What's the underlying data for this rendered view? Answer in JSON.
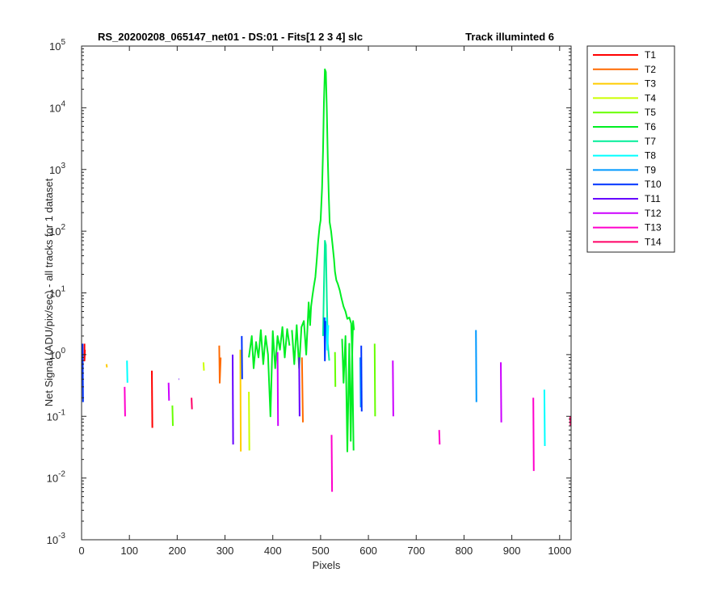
{
  "chart_data": {
    "type": "line",
    "title": "RS_20200208_065147_net01 - DS:01 - Fits[1  2  3  4]   slc",
    "subtitle": "Track illuminted 6",
    "xlabel": "Pixels",
    "ylabel": "Net Signal (ADU/pix/sec) - all tracks for 1 dataset",
    "xlim": [
      0,
      1024
    ],
    "ylim": [
      0.001,
      100000
    ],
    "yscale": "log",
    "x_ticks": [
      "0",
      "100",
      "200",
      "300",
      "400",
      "500",
      "600",
      "700",
      "800",
      "900",
      "1000"
    ],
    "y_ticks": [
      {
        "base": "10",
        "exp": "-3"
      },
      {
        "base": "10",
        "exp": "-2"
      },
      {
        "base": "10",
        "exp": "-1"
      },
      {
        "base": "10",
        "exp": "0"
      },
      {
        "base": "10",
        "exp": "1"
      },
      {
        "base": "10",
        "exp": "2"
      },
      {
        "base": "10",
        "exp": "3"
      },
      {
        "base": "10",
        "exp": "4"
      },
      {
        "base": "10",
        "exp": "5"
      }
    ],
    "grid": false,
    "legend_position": "outside-right",
    "series": [
      {
        "name": "T1",
        "color": "#ff0000",
        "segments": [
          [
            [
              6,
              1.5
            ],
            [
              6,
              0.8
            ],
            [
              7,
              1.2
            ]
          ],
          [
            [
              147,
              0.55
            ],
            [
              148,
              0.065
            ]
          ]
        ]
      },
      {
        "name": "T2",
        "color": "#ff6a00",
        "segments": [
          [
            [
              288,
              1.4
            ],
            [
              289,
              0.35
            ],
            [
              291,
              0.9
            ]
          ],
          [
            [
              461,
              0.9
            ],
            [
              463,
              0.08
            ]
          ]
        ]
      },
      {
        "name": "T3",
        "color": "#ffcc00",
        "segments": [
          [
            [
              52,
              0.7
            ],
            [
              53,
              0.62
            ]
          ],
          [
            [
              332,
              1.2
            ],
            [
              333,
              0.027
            ]
          ]
        ]
      },
      {
        "name": "T4",
        "color": "#ccff00",
        "segments": [
          [
            [
              255,
              0.75
            ],
            [
              256,
              0.55
            ]
          ],
          [
            [
              350,
              0.25
            ],
            [
              351,
              0.028
            ]
          ]
        ]
      },
      {
        "name": "T5",
        "color": "#66ff00",
        "segments": [
          [
            [
              190,
              0.15
            ],
            [
              191,
              0.07
            ]
          ],
          [
            [
              530,
              1.1
            ],
            [
              531,
              0.3
            ]
          ],
          [
            [
              613,
              1.5
            ],
            [
              614,
              0.1
            ]
          ]
        ]
      },
      {
        "name": "T6",
        "color": "#00ee22",
        "segments": [
          [
            [
              440,
              2.5
            ],
            [
              445,
              0.7
            ],
            [
              450,
              3.0
            ],
            [
              455,
              0.6
            ],
            [
              460,
              2.8
            ],
            [
              465,
              3.5
            ],
            [
              470,
              1.0
            ],
            [
              475,
              7.0
            ],
            [
              478,
              3.0
            ],
            [
              480,
              6.0
            ],
            [
              483,
              9.0
            ],
            [
              486,
              13
            ],
            [
              489,
              18
            ],
            [
              492,
              35
            ],
            [
              495,
              70
            ],
            [
              498,
              120
            ],
            [
              500,
              150
            ],
            [
              503,
              500
            ],
            [
              505,
              2000
            ],
            [
              507,
              12000
            ],
            [
              509,
              42000
            ],
            [
              511,
              38000
            ],
            [
              513,
              9000
            ],
            [
              515,
              1500
            ],
            [
              517,
              380
            ],
            [
              519,
              140
            ],
            [
              522,
              100
            ],
            [
              525,
              60
            ],
            [
              528,
              35
            ],
            [
              530,
              22
            ],
            [
              533,
              16
            ],
            [
              536,
              14
            ],
            [
              540,
              11
            ],
            [
              544,
              8
            ],
            [
              548,
              6
            ],
            [
              552,
              5.0
            ],
            [
              556,
              3.8
            ],
            [
              560,
              4.0
            ],
            [
              564,
              3.2
            ],
            [
              566,
              1.0
            ],
            [
              568,
              3.5
            ],
            [
              570,
              2.5
            ]
          ],
          [
            [
              350,
              0.9
            ],
            [
              356,
              2.0
            ],
            [
              360,
              0.6
            ],
            [
              365,
              1.6
            ],
            [
              370,
              0.9
            ],
            [
              375,
              2.5
            ],
            [
              380,
              0.7
            ],
            [
              385,
              2.0
            ],
            [
              390,
              1.0
            ],
            [
              395,
              0.1
            ],
            [
              400,
              2.4
            ],
            [
              405,
              0.6
            ],
            [
              410,
              2.0
            ],
            [
              415,
              1.2
            ],
            [
              420,
              2.8
            ],
            [
              425,
              0.9
            ],
            [
              430,
              2.6
            ],
            [
              435,
              1.4
            ]
          ],
          [
            [
              545,
              1.8
            ],
            [
              548,
              0.35
            ],
            [
              552,
              2.0
            ],
            [
              556,
              0.027
            ],
            [
              560,
              1.5
            ],
            [
              563,
              0.04
            ],
            [
              566,
              1.2
            ],
            [
              569,
              0.028
            ]
          ]
        ]
      },
      {
        "name": "T7",
        "color": "#00ee99",
        "segments": [
          [
            [
              505,
              2.0
            ],
            [
              507,
              12
            ],
            [
              509,
              70
            ],
            [
              511,
              60
            ],
            [
              513,
              8
            ],
            [
              515,
              1.5
            ],
            [
              518,
              0.8
            ]
          ]
        ]
      },
      {
        "name": "T8",
        "color": "#00ffff",
        "segments": [
          [
            [
              95,
              0.8
            ],
            [
              96,
              0.35
            ]
          ],
          [
            [
              512,
              4.0
            ],
            [
              514,
              1.2
            ],
            [
              516,
              3.0
            ]
          ],
          [
            [
              968,
              0.27
            ],
            [
              969,
              0.033
            ]
          ]
        ]
      },
      {
        "name": "T9",
        "color": "#0099ff",
        "segments": [
          [
            [
              583,
              0.9
            ],
            [
              584,
              0.14
            ]
          ],
          [
            [
              825,
              2.5
            ],
            [
              826,
              0.17
            ]
          ]
        ]
      },
      {
        "name": "T10",
        "color": "#0033ff",
        "segments": [
          [
            [
              2,
              1.5
            ],
            [
              3,
              0.17
            ]
          ],
          [
            [
              335,
              2.0
            ],
            [
              336,
              0.4
            ]
          ],
          [
            [
              508,
              4.0
            ],
            [
              509,
              0.8
            ],
            [
              510,
              3.5
            ]
          ],
          [
            [
              585,
              1.4
            ],
            [
              586,
              0.12
            ]
          ]
        ]
      },
      {
        "name": "T11",
        "color": "#6600ff",
        "segments": [
          [
            [
              203,
              0.4
            ],
            [
              204,
              0.4
            ]
          ],
          [
            [
              316,
              1.0
            ],
            [
              317,
              0.035
            ]
          ],
          [
            [
              455,
              0.9
            ],
            [
              456,
              0.1
            ]
          ]
        ]
      },
      {
        "name": "T12",
        "color": "#cc00ff",
        "segments": [
          [
            [
              182,
              0.35
            ],
            [
              183,
              0.18
            ]
          ],
          [
            [
              410,
              1.1
            ],
            [
              411,
              0.07
            ]
          ],
          [
            [
              651,
              0.8
            ],
            [
              652,
              0.1
            ]
          ],
          [
            [
              877,
              0.75
            ],
            [
              878,
              0.08
            ]
          ]
        ]
      },
      {
        "name": "T13",
        "color": "#ff00cc",
        "segments": [
          [
            [
              90,
              0.3
            ],
            [
              91,
              0.1
            ]
          ],
          [
            [
              523,
              0.05
            ],
            [
              524,
              0.006
            ]
          ],
          [
            [
              748,
              0.06
            ],
            [
              749,
              0.035
            ]
          ],
          [
            [
              945,
              0.2
            ],
            [
              946,
              0.013
            ]
          ]
        ]
      },
      {
        "name": "T14",
        "color": "#ff0066",
        "segments": [
          [
            [
              230,
              0.2
            ],
            [
              231,
              0.13
            ]
          ],
          [
            [
              1022,
              0.1
            ],
            [
              1023,
              0.07
            ]
          ]
        ]
      }
    ]
  }
}
